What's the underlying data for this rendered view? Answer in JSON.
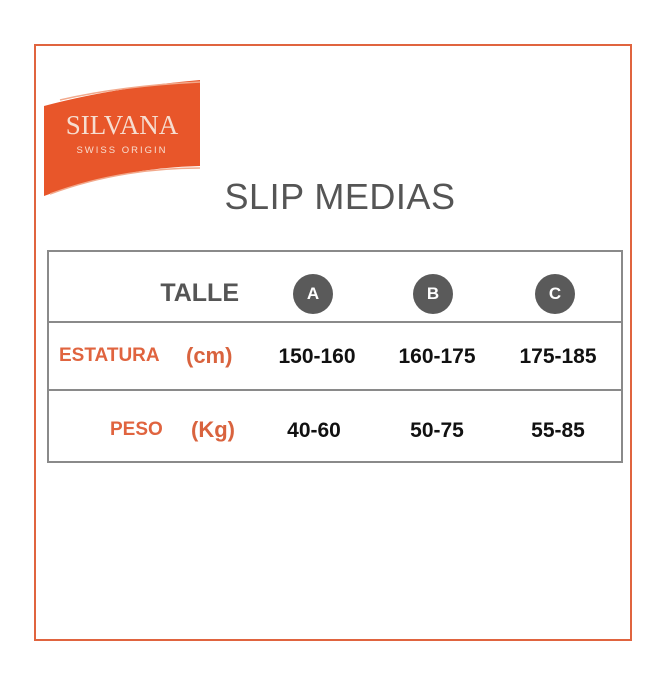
{
  "brand": {
    "name": "SILVANA",
    "tagline": "SWISS ORIGIN",
    "color": "#e8562a"
  },
  "title": "SLIP MEDIAS",
  "table": {
    "header_label": "TALLE",
    "sizes": [
      "A",
      "B",
      "C"
    ],
    "rows": [
      {
        "label": "ESTATURA",
        "unit": "(cm)",
        "values": [
          "150-160",
          "160-175",
          "175-185"
        ]
      },
      {
        "label": "PESO",
        "unit": "(Kg)",
        "values": [
          "40-60",
          "50-75",
          "55-85"
        ]
      }
    ]
  },
  "colors": {
    "accent": "#e0643f",
    "circle": "#5a5a5a"
  }
}
